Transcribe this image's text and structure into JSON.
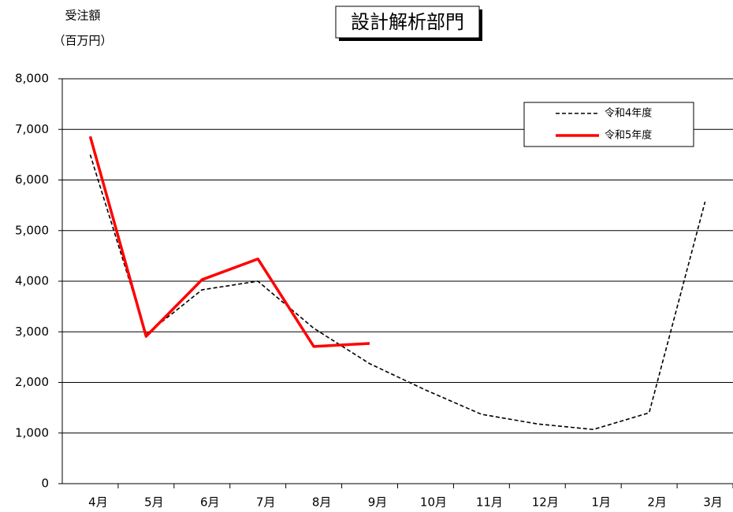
{
  "chart_data": {
    "type": "line",
    "title": "設計解析部門",
    "y_label": [
      "受注額",
      "（百万円）"
    ],
    "categories": [
      "4月",
      "5月",
      "6月",
      "7月",
      "8月",
      "9月",
      "10月",
      "11月",
      "12月",
      "1月",
      "2月",
      "3月"
    ],
    "series": [
      {
        "name": "令和4年度",
        "color": "#000000",
        "line_style": "dashed",
        "values": [
          6500,
          2950,
          3830,
          4000,
          3070,
          2370,
          1850,
          1370,
          1180,
          1070,
          1400,
          5570
        ]
      },
      {
        "name": "令和5年度",
        "color": "#ff0000",
        "line_style": "solid",
        "values": [
          6860,
          2910,
          4030,
          4440,
          2710,
          2770,
          null,
          null,
          null,
          null,
          null,
          null
        ]
      }
    ],
    "ylim": [
      0,
      8000
    ],
    "yticks": [
      0,
      {
        "value": 1000,
        "label": "1,000"
      },
      {
        "value": 2000,
        "label": "2,000"
      },
      {
        "value": 3000,
        "label": "3,000"
      },
      {
        "value": 4000,
        "label": "4,000"
      },
      {
        "value": 5000,
        "label": "5,000"
      },
      {
        "value": 6000,
        "label": "6,000"
      },
      {
        "value": 7000,
        "label": "7,000"
      },
      {
        "value": 8000,
        "label": "8,000"
      }
    ],
    "grid": true,
    "legend": "upper right"
  }
}
